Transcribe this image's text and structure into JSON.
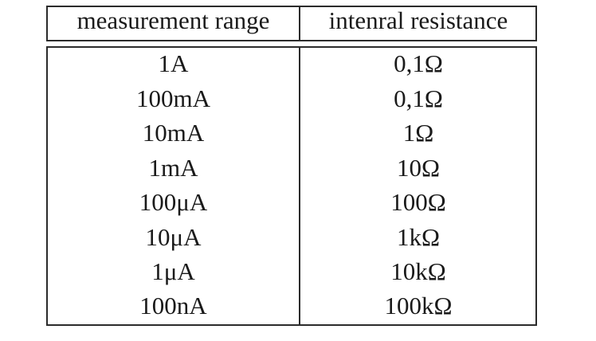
{
  "table": {
    "headers": [
      "measurement range",
      "intenral resistance"
    ],
    "rows": [
      [
        "1A",
        "0,1Ω"
      ],
      [
        "100mA",
        "0,1Ω"
      ],
      [
        "10mA",
        "1Ω"
      ],
      [
        "1mA",
        "10Ω"
      ],
      [
        "100μA",
        "100Ω"
      ],
      [
        "10μA",
        "1kΩ"
      ],
      [
        "1μA",
        "10kΩ"
      ],
      [
        "100nA",
        "100kΩ"
      ]
    ]
  }
}
